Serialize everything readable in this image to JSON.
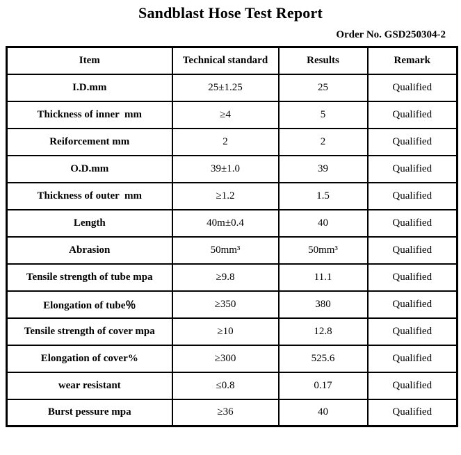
{
  "page": {
    "title": "Sandblast Hose Test Report",
    "order_no": "Order No. GSD250304-2"
  },
  "colors": {
    "text": "#000000",
    "border": "#000000",
    "background": "#ffffff"
  },
  "table": {
    "headers": [
      "Item",
      "Technical standard",
      "Results",
      "Remark"
    ],
    "rows": [
      {
        "item": "I.D.mm",
        "standard": "25±1.25",
        "result": "25",
        "remark": "Qualified"
      },
      {
        "item": "Thickness of inner  mm",
        "standard": "≥4",
        "result": "5",
        "remark": "Qualified"
      },
      {
        "item": "Reiforcement mm",
        "standard": "2",
        "result": "2",
        "remark": "Qualified"
      },
      {
        "item": "O.D.mm",
        "standard": "39±1.0",
        "result": "39",
        "remark": "Qualified"
      },
      {
        "item": "Thickness of outer  mm",
        "standard": "≥1.2",
        "result": "1.5",
        "remark": "Qualified"
      },
      {
        "item": "Length",
        "standard": "40m±0.4",
        "result": "40",
        "remark": "Qualified"
      },
      {
        "item": "Abrasion",
        "standard": "50mm³",
        "result": "50mm³",
        "remark": "Qualified"
      },
      {
        "item": "Tensile strength of tube mpa",
        "standard": "≥9.8",
        "result": "11.1",
        "remark": "Qualified"
      },
      {
        "item": "Elongation of tube％",
        "standard": "≥350",
        "result": "380",
        "remark": "Qualified"
      },
      {
        "item": "Tensile strength of cover mpa",
        "standard": "≥10",
        "result": "12.8",
        "remark": "Qualified"
      },
      {
        "item": "Elongation of cover%",
        "standard": "≥300",
        "result": "525.6",
        "remark": "Qualified"
      },
      {
        "item": "wear resistant",
        "standard": "≤0.8",
        "result": "0.17",
        "remark": "Qualified"
      },
      {
        "item": "Burst pessure mpa",
        "standard": "≥36",
        "result": "40",
        "remark": "Qualified"
      }
    ]
  }
}
